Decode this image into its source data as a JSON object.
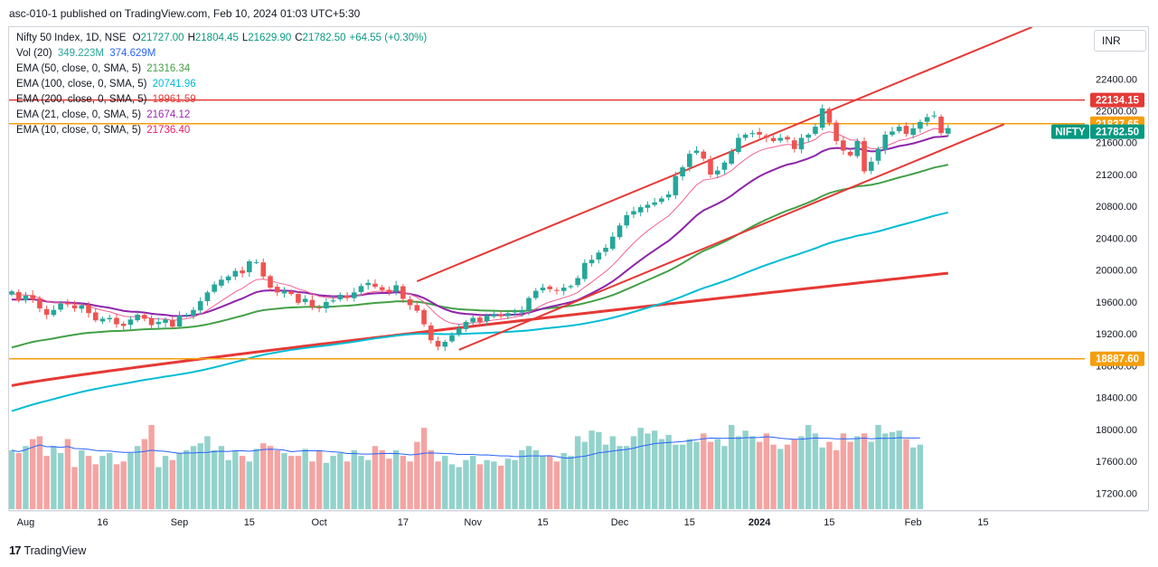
{
  "header": {
    "published": "asc-010-1 published on TradingView.com, Feb 10, 2024 01:03 UTC+5:30"
  },
  "currency_button": "INR",
  "footer": {
    "brand": "TradingView",
    "logo": "tradingview-logo"
  },
  "legend": {
    "symbol": "Nifty 50 Index, 1D, NSE",
    "ohlc": [
      {
        "k": "O",
        "v": "21727.00"
      },
      {
        "k": "H",
        "v": "21804.45"
      },
      {
        "k": "L",
        "v": "21629.90"
      },
      {
        "k": "C",
        "v": "21782.50"
      },
      {
        "k": "",
        "v": "+64.55 (+0.30%)"
      }
    ],
    "indicators": [
      {
        "name": "Vol (20)",
        "values": [
          "349.223M",
          "374.629M"
        ],
        "colors": [
          "#26a69a",
          "#2962ff"
        ]
      },
      {
        "name": "EMA (50, close, 0, SMA, 5)",
        "values": [
          "21316.34"
        ],
        "colors": [
          "#43a047"
        ]
      },
      {
        "name": "EMA (100, close, 0, SMA, 5)",
        "values": [
          "20741.96"
        ],
        "colors": [
          "#00bcd4"
        ]
      },
      {
        "name": "EMA (200, close, 0, SMA, 5)",
        "values": [
          "19961.59"
        ],
        "colors": [
          "#e53935"
        ]
      },
      {
        "name": "EMA (21, close, 0, SMA, 5)",
        "values": [
          "21674.12"
        ],
        "colors": [
          "#9c27b0"
        ]
      },
      {
        "name": "EMA (10, close, 0, SMA, 5)",
        "values": [
          "21736.40"
        ],
        "colors": [
          "#e91e63"
        ]
      }
    ]
  },
  "colors": {
    "up": "#26a69a",
    "down": "#ef5350",
    "vol_up": "#93d2cc",
    "vol_down": "#f4a4a2",
    "ema10": "#f06292",
    "ema21": "#8e24aa",
    "ema50": "#43a047",
    "ema100": "#00bcd4",
    "ema200": "#e53935",
    "trend": "#e53935",
    "hline_red": "#e53935",
    "hline_orange": "#f59e0b",
    "vol_ma": "#2962ff"
  },
  "chart_data": {
    "type": "candlestick",
    "title": "Nifty 50 Index, 1D, NSE",
    "y_range": [
      17000,
      23050
    ],
    "y_ticks": [
      17200,
      17600,
      18000,
      18400,
      18800,
      19200,
      19600,
      20000,
      20400,
      20800,
      21200,
      21600,
      22000,
      22400
    ],
    "x_ticks": [
      {
        "label": "Aug",
        "i": 2
      },
      {
        "label": "16",
        "i": 13
      },
      {
        "label": "Sep",
        "i": 24
      },
      {
        "label": "15",
        "i": 34
      },
      {
        "label": "Oct",
        "i": 44
      },
      {
        "label": "17",
        "i": 56
      },
      {
        "label": "Nov",
        "i": 66
      },
      {
        "label": "15",
        "i": 76
      },
      {
        "label": "Dec",
        "i": 87
      },
      {
        "label": "15",
        "i": 97
      },
      {
        "label": "2024",
        "i": 107
      },
      {
        "label": "15",
        "i": 117
      },
      {
        "label": "Feb",
        "i": 129
      },
      {
        "label": "15",
        "i": 139
      }
    ],
    "candles_close": [
      19733,
      19620,
      19680,
      19630,
      19520,
      19440,
      19500,
      19580,
      19570,
      19520,
      19560,
      19460,
      19370,
      19390,
      19400,
      19320,
      19300,
      19380,
      19440,
      19390,
      19310,
      19350,
      19380,
      19290,
      19430,
      19440,
      19500,
      19610,
      19720,
      19820,
      19880,
      19920,
      19990,
      19960,
      20110,
      20100,
      19920,
      19780,
      19720,
      19740,
      19700,
      19590,
      19640,
      19540,
      19520,
      19600,
      19620,
      19690,
      19650,
      19720,
      19800,
      19840,
      19790,
      19750,
      19720,
      19810,
      19640,
      19560,
      19490,
      19320,
      19120,
      19040,
      19100,
      19180,
      19270,
      19350,
      19400,
      19350,
      19430,
      19450,
      19420,
      19460,
      19480,
      19500,
      19650,
      19740,
      19780,
      19760,
      19740,
      19780,
      19800,
      19900,
      20090,
      20130,
      20220,
      20280,
      20420,
      20560,
      20690,
      20740,
      20790,
      20820,
      20850,
      20900,
      20950,
      21180,
      21290,
      21460,
      21500,
      21400,
      21200,
      21250,
      21350,
      21490,
      21660,
      21700,
      21720,
      21700,
      21660,
      21620,
      21660,
      21640,
      21520,
      21660,
      21700,
      21800,
      22030,
      21850,
      21620,
      21500,
      21440,
      21620,
      21240,
      21360,
      21520,
      21700,
      21740,
      21800,
      21710,
      21780,
      21860,
      21920,
      21940,
      21720,
      21782.5
    ],
    "volume": [
      372,
      370,
      375,
      380,
      382,
      368,
      375,
      370,
      380,
      360,
      372,
      368,
      362,
      368,
      370,
      362,
      364,
      370,
      375,
      380,
      390,
      360,
      368,
      365,
      370,
      372,
      375,
      377,
      382,
      372,
      375,
      365,
      372,
      368,
      364,
      373,
      377,
      375,
      372,
      370,
      368,
      368,
      373,
      364,
      372,
      363,
      368,
      370,
      364,
      372,
      368,
      365,
      375,
      372,
      366,
      372,
      368,
      364,
      378,
      388,
      372,
      364,
      368,
      362,
      360,
      365,
      368,
      362,
      365,
      364,
      361,
      366,
      365,
      372,
      375,
      372,
      368,
      368,
      364,
      370,
      368,
      382,
      378,
      386,
      385,
      376,
      382,
      375,
      375,
      382,
      388,
      384,
      386,
      380,
      383,
      376,
      376,
      380,
      378,
      384,
      378,
      380,
      375,
      390,
      382,
      386,
      382,
      378,
      384,
      376,
      373,
      376,
      380,
      382,
      390,
      384,
      374,
      378,
      372,
      384,
      378,
      382,
      384,
      378,
      390,
      384,
      385,
      386,
      380,
      374,
      376
    ],
    "ema200_at_i0": 18550,
    "ema200_at_i135": 19961.59,
    "trendline_upper": [
      {
        "i": 58,
        "price": 19860
      },
      {
        "i": 146,
        "price": 23050
      }
    ],
    "trendline_lower": [
      {
        "i": 64,
        "price": 19000
      },
      {
        "i": 142,
        "price": 21830
      }
    ],
    "levels": [
      {
        "label": "22134.15",
        "price": 22134.15,
        "color": "#e53935"
      },
      {
        "label": "21837.65",
        "price": 21837.65,
        "color": "#f59e0b"
      },
      {
        "label": "18887.60",
        "price": 18887.6,
        "color": "#f59e0b"
      }
    ],
    "last_price": {
      "symbol": "NIFTY",
      "label": "21782.50",
      "price": 21782.5
    },
    "ema_last": {
      "ema10": 21736.4,
      "ema21": 21674.12,
      "ema50": 21316.34,
      "ema100": 20741.96,
      "ema200": 19961.59
    }
  }
}
